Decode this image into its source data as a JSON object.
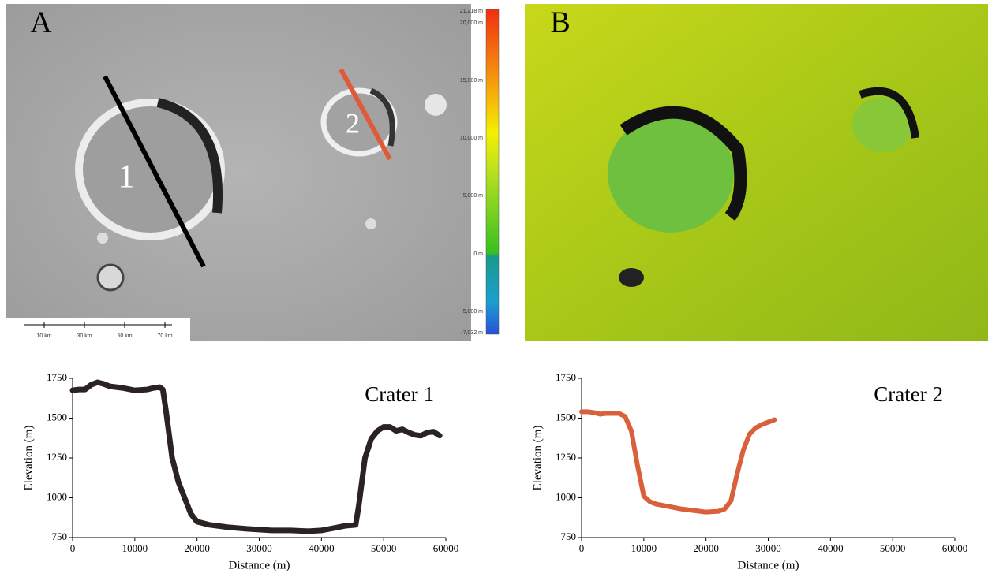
{
  "panels": {
    "a_label": "A",
    "b_label": "B",
    "profile_1_label": "1",
    "profile_2_label": "2",
    "colorbar_labels": [
      "21,218 m",
      "20,000 m",
      "15,000 m",
      "10,000 m",
      "5,000 m",
      "0 m",
      "-5,000 m",
      "-7,032 m"
    ],
    "scale_labels": [
      "10 km",
      "30 km",
      "50 km",
      "70 km"
    ]
  },
  "chart_data": [
    {
      "type": "line",
      "title": "Crater 1",
      "x_label": "Distance (m)",
      "y_label": "Elevation (m)",
      "xlim": [
        0,
        60000
      ],
      "xticks": [
        0,
        10000,
        20000,
        30000,
        40000,
        50000,
        60000
      ],
      "ylim": [
        750,
        1750
      ],
      "yticks": [
        750,
        1000,
        1250,
        1500,
        1750
      ],
      "grid": false,
      "x": [
        0,
        1000,
        2000,
        3000,
        4000,
        5000,
        6000,
        8000,
        10000,
        12000,
        13000,
        14000,
        14500,
        15000,
        15500,
        16000,
        17000,
        18000,
        19000,
        20000,
        22000,
        25000,
        28000,
        30000,
        32000,
        35000,
        38000,
        40000,
        42000,
        44000,
        45500,
        46000,
        47000,
        48000,
        49000,
        50000,
        51000,
        52000,
        53000,
        54000,
        55000,
        56000,
        57000,
        58000,
        59000
      ],
      "series": [
        {
          "name": "Crater 1",
          "color": "#2b2222",
          "values": [
            1675,
            1680,
            1680,
            1710,
            1725,
            1715,
            1700,
            1690,
            1675,
            1680,
            1690,
            1695,
            1680,
            1550,
            1400,
            1250,
            1100,
            1000,
            900,
            850,
            830,
            815,
            805,
            800,
            795,
            795,
            790,
            795,
            810,
            825,
            830,
            950,
            1250,
            1370,
            1420,
            1445,
            1445,
            1420,
            1430,
            1410,
            1395,
            1390,
            1410,
            1415,
            1390
          ]
        }
      ]
    },
    {
      "type": "line",
      "title": "Crater 2",
      "x_label": "Distance (m)",
      "y_label": "Elevation (m)",
      "xlim": [
        0,
        60000
      ],
      "xticks": [
        0,
        10000,
        20000,
        30000,
        40000,
        50000,
        60000
      ],
      "ylim": [
        750,
        1750
      ],
      "yticks": [
        750,
        1000,
        1250,
        1500,
        1750
      ],
      "grid": false,
      "x": [
        0,
        1000,
        2000,
        3000,
        4000,
        5000,
        6000,
        7000,
        8000,
        9000,
        10000,
        11000,
        12000,
        14000,
        16000,
        18000,
        20000,
        22000,
        23000,
        24000,
        25000,
        26000,
        27000,
        28000,
        29000,
        30000,
        31000
      ],
      "series": [
        {
          "name": "Crater 2",
          "color": "#d9603b",
          "values": [
            1540,
            1540,
            1535,
            1525,
            1530,
            1530,
            1530,
            1510,
            1420,
            1200,
            1010,
            975,
            960,
            945,
            930,
            920,
            910,
            915,
            930,
            980,
            1150,
            1300,
            1400,
            1440,
            1460,
            1475,
            1490
          ]
        }
      ]
    }
  ]
}
